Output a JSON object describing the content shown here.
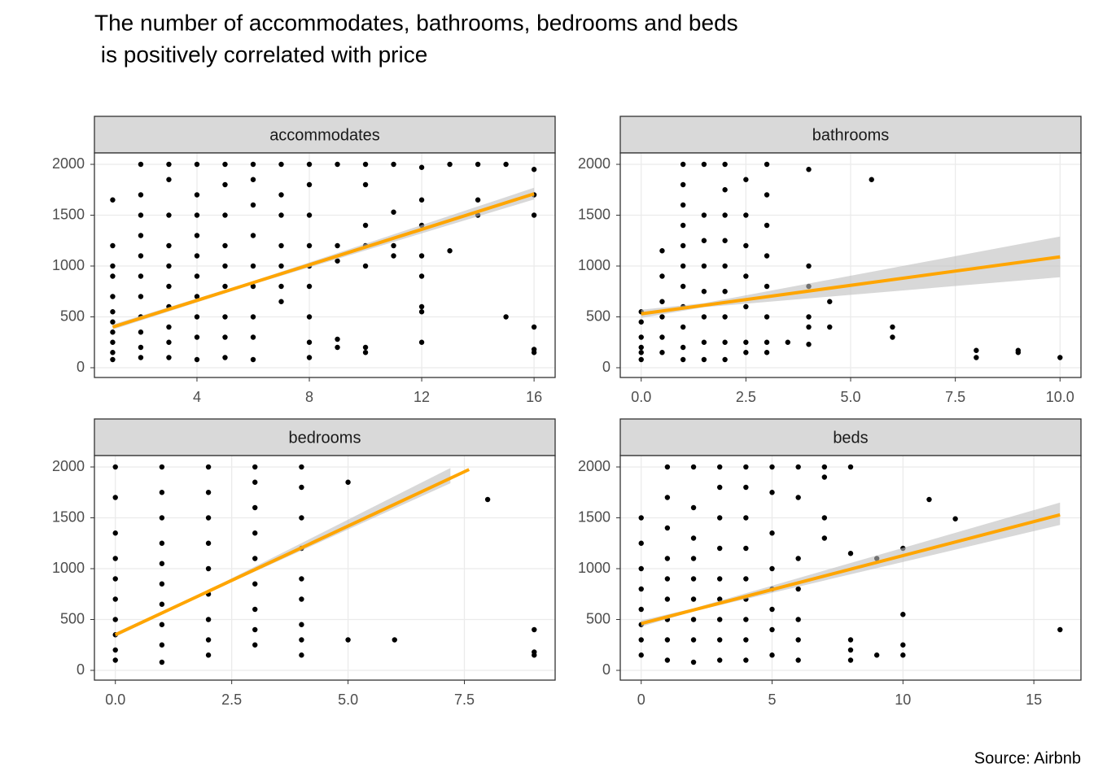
{
  "title": [
    "The number of accommodates, bathrooms, bedrooms and beds",
    " is positively correlated with price"
  ],
  "caption": "Source: Airbnb",
  "chart_data": [
    {
      "type": "scatter",
      "title": "accommodates",
      "color": "#000000",
      "fit_color": "#FFA500",
      "band_color": "#bebebe",
      "grid": true,
      "xlim": [
        0.35,
        16.75
      ],
      "xticks": [
        4,
        8,
        12,
        16
      ],
      "ylim": [
        -96,
        2112
      ],
      "yticks": [
        0,
        500,
        1000,
        1500,
        2000
      ],
      "x": [
        1,
        1,
        1,
        1,
        1,
        1,
        1,
        1,
        1,
        1,
        1,
        2,
        2,
        2,
        2,
        2,
        2,
        2,
        2,
        2,
        2,
        2,
        3,
        3,
        3,
        3,
        3,
        3,
        3,
        3,
        3,
        3,
        4,
        4,
        4,
        4,
        4,
        4,
        4,
        4,
        4,
        4,
        5,
        5,
        5,
        5,
        5,
        5,
        5,
        5,
        5,
        6,
        6,
        6,
        6,
        6,
        6,
        6,
        6,
        6,
        7,
        7,
        7,
        7,
        7,
        7,
        7,
        8,
        8,
        8,
        8,
        8,
        8,
        8,
        8,
        8,
        9,
        9,
        9,
        9,
        9,
        10,
        10,
        10,
        10,
        10,
        10,
        10,
        11,
        11,
        11,
        11,
        12,
        12,
        12,
        12,
        12,
        12,
        12,
        12,
        13,
        13,
        14,
        14,
        14,
        15,
        15,
        16,
        16,
        16,
        16,
        16,
        16
      ],
      "y": [
        80,
        150,
        250,
        350,
        450,
        550,
        700,
        900,
        1000,
        1200,
        1650,
        100,
        200,
        350,
        500,
        700,
        900,
        1100,
        1300,
        1500,
        1700,
        2000,
        100,
        250,
        400,
        600,
        800,
        1000,
        1200,
        1500,
        1850,
        2000,
        80,
        300,
        500,
        700,
        900,
        1100,
        1300,
        1500,
        1700,
        2000,
        100,
        300,
        500,
        800,
        1000,
        1200,
        1500,
        1800,
        2000,
        80,
        300,
        500,
        800,
        1000,
        1300,
        1600,
        1850,
        2000,
        650,
        800,
        1000,
        1200,
        1500,
        1700,
        2000,
        100,
        250,
        500,
        800,
        1000,
        1200,
        1500,
        1800,
        2000,
        200,
        280,
        1050,
        1200,
        2000,
        150,
        200,
        1000,
        1200,
        1400,
        1800,
        2000,
        1100,
        1200,
        1530,
        2000,
        250,
        550,
        600,
        900,
        1100,
        1400,
        1650,
        1970,
        1150,
        2000,
        1500,
        1650,
        2000,
        500,
        2000,
        150,
        180,
        400,
        1500,
        1700,
        1950
      ],
      "fit": {
        "x": [
          1,
          16
        ],
        "y": [
          400,
          1710
        ]
      },
      "band": {
        "x": [
          1,
          6,
          16
        ],
        "lower": [
          375,
          820,
          1655
        ],
        "upper": [
          425,
          852,
          1770
        ]
      }
    },
    {
      "type": "scatter",
      "title": "bathrooms",
      "color": "#000000",
      "fit_color": "#FFA500",
      "band_color": "#bebebe",
      "grid": true,
      "xlim": [
        -0.5,
        10.5
      ],
      "xticks": [
        {
          "value": 0,
          "label": "0.0"
        },
        2.5,
        {
          "value": 5,
          "label": "5.0"
        },
        7.5,
        {
          "value": 10,
          "label": "10.0"
        }
      ],
      "ylim": [
        -96,
        2112
      ],
      "yticks": [
        0,
        500,
        1000,
        1500,
        2000
      ],
      "x": [
        0,
        0,
        0,
        0,
        0,
        0,
        0.5,
        0.5,
        0.5,
        0.5,
        0.5,
        0.5,
        1,
        1,
        1,
        1,
        1,
        1,
        1,
        1,
        1,
        1,
        1,
        1.5,
        1.5,
        1.5,
        1.5,
        1.5,
        1.5,
        1.5,
        1.5,
        2,
        2,
        2,
        2,
        2,
        2,
        2,
        2,
        2,
        2.5,
        2.5,
        2.5,
        2.5,
        2.5,
        2.5,
        2.5,
        3,
        3,
        3,
        3,
        3,
        3,
        3,
        3,
        3.5,
        4,
        4,
        4,
        4,
        4,
        4,
        4.5,
        4.5,
        5.5,
        6,
        6,
        8,
        8,
        9,
        9,
        10
      ],
      "y": [
        80,
        150,
        200,
        300,
        450,
        550,
        150,
        300,
        500,
        650,
        900,
        1150,
        80,
        200,
        400,
        600,
        800,
        1000,
        1200,
        1400,
        1600,
        1800,
        2000,
        80,
        250,
        500,
        750,
        1000,
        1250,
        1500,
        2000,
        80,
        250,
        500,
        750,
        1000,
        1250,
        1500,
        1750,
        2000,
        150,
        250,
        600,
        900,
        1200,
        1500,
        1850,
        150,
        250,
        500,
        800,
        1100,
        1400,
        1700,
        2000,
        250,
        230,
        400,
        500,
        800,
        1000,
        1950,
        400,
        650,
        1850,
        300,
        400,
        100,
        170,
        150,
        170,
        100
      ],
      "fit": {
        "x": [
          0,
          10
        ],
        "y": [
          530,
          1090
        ]
      },
      "band": {
        "x": [
          0,
          1.5,
          10
        ],
        "lower": [
          490,
          595,
          890
        ],
        "upper": [
          570,
          635,
          1290
        ]
      }
    },
    {
      "type": "scatter",
      "title": "bedrooms",
      "color": "#000000",
      "fit_color": "#FFA500",
      "band_color": "#bebebe",
      "grid": true,
      "xlim": [
        -0.45,
        9.45
      ],
      "xticks": [
        {
          "value": 0,
          "label": "0.0"
        },
        2.5,
        {
          "value": 5,
          "label": "5.0"
        },
        7.5
      ],
      "ylim": [
        -96,
        2112
      ],
      "yticks": [
        0,
        500,
        1000,
        1500,
        2000
      ],
      "x": [
        0,
        0,
        0,
        0,
        0,
        0,
        0,
        0,
        0,
        0,
        1,
        1,
        1,
        1,
        1,
        1,
        1,
        1,
        1,
        1,
        2,
        2,
        2,
        2,
        2,
        2,
        2,
        2,
        2,
        3,
        3,
        3,
        3,
        3,
        3,
        3,
        3,
        3,
        4,
        4,
        4,
        4,
        4,
        4,
        4,
        4,
        4,
        5,
        5,
        6,
        8,
        9,
        9,
        9
      ],
      "y": [
        100,
        200,
        350,
        500,
        700,
        900,
        1100,
        1350,
        1700,
        2000,
        80,
        250,
        450,
        650,
        850,
        1050,
        1250,
        1500,
        1750,
        2000,
        150,
        300,
        500,
        750,
        1000,
        1250,
        1500,
        1750,
        2000,
        250,
        400,
        600,
        850,
        1100,
        1350,
        1600,
        1850,
        2000,
        150,
        300,
        450,
        700,
        900,
        1200,
        1500,
        1800,
        2000,
        300,
        1850,
        300,
        1680,
        150,
        180,
        400
      ],
      "fit": {
        "x": [
          0,
          7.6
        ],
        "y": [
          350,
          1975
        ]
      },
      "band": {
        "x": [
          0,
          2,
          7.2
        ],
        "lower": [
          330,
          765,
          1840
        ],
        "upper": [
          370,
          790,
          1990
        ]
      }
    },
    {
      "type": "scatter",
      "title": "beds",
      "color": "#000000",
      "fit_color": "#FFA500",
      "band_color": "#bebebe",
      "grid": true,
      "xlim": [
        -0.8,
        16.8
      ],
      "xticks": [
        0,
        5,
        10,
        15
      ],
      "ylim": [
        -96,
        2112
      ],
      "yticks": [
        0,
        500,
        1000,
        1500,
        2000
      ],
      "x": [
        0,
        0,
        0,
        0,
        0,
        0,
        0,
        0,
        1,
        1,
        1,
        1,
        1,
        1,
        1,
        1,
        1,
        2,
        2,
        2,
        2,
        2,
        2,
        2,
        2,
        2,
        3,
        3,
        3,
        3,
        3,
        3,
        3,
        3,
        3,
        4,
        4,
        4,
        4,
        4,
        4,
        4,
        4,
        4,
        5,
        5,
        5,
        5,
        5,
        5,
        5,
        5,
        6,
        6,
        6,
        6,
        6,
        6,
        6,
        7,
        7,
        7,
        7,
        8,
        8,
        8,
        8,
        8,
        9,
        9,
        10,
        10,
        10,
        10,
        11,
        12,
        16
      ],
      "y": [
        150,
        300,
        450,
        600,
        800,
        1000,
        1250,
        1500,
        100,
        300,
        500,
        700,
        900,
        1100,
        1400,
        1700,
        2000,
        80,
        300,
        500,
        700,
        900,
        1100,
        1300,
        1600,
        2000,
        100,
        300,
        500,
        700,
        900,
        1200,
        1500,
        1800,
        2000,
        100,
        300,
        500,
        700,
        900,
        1200,
        1500,
        1800,
        2000,
        150,
        400,
        600,
        800,
        1000,
        1350,
        1750,
        2000,
        100,
        300,
        500,
        800,
        1100,
        1700,
        2000,
        1300,
        1500,
        1900,
        2000,
        100,
        200,
        300,
        1150,
        2000,
        150,
        1100,
        150,
        250,
        550,
        1200,
        1680,
        1490,
        400
      ],
      "fit": {
        "x": [
          0,
          16
        ],
        "y": [
          460,
          1530
        ]
      },
      "band": {
        "x": [
          0,
          2,
          16
        ],
        "lower": [
          430,
          580,
          1430
        ],
        "upper": [
          490,
          610,
          1650
        ]
      }
    }
  ]
}
